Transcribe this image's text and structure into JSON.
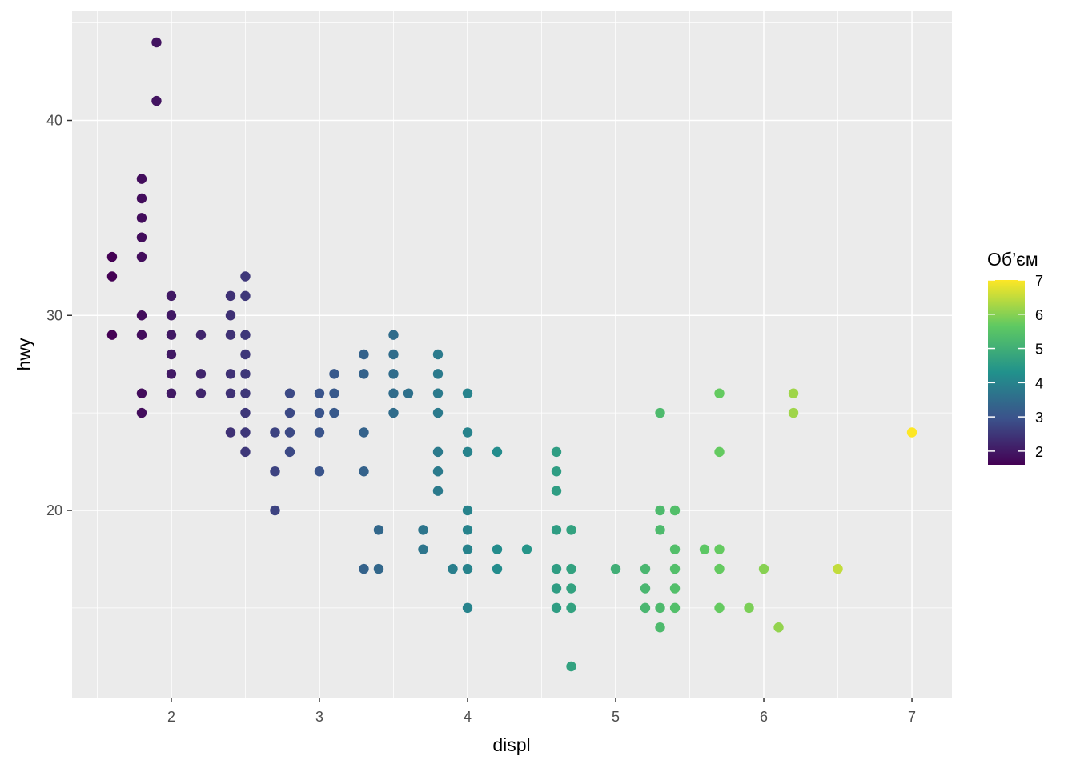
{
  "chart_data": {
    "type": "scatter",
    "xlabel": "displ",
    "ylabel": "hwy",
    "xlim": [
      1.33,
      7.27
    ],
    "ylim": [
      10.4,
      45.6
    ],
    "x_ticks": [
      2,
      3,
      4,
      5,
      6,
      7
    ],
    "y_ticks": [
      20,
      30,
      40
    ],
    "grid": true,
    "legend": {
      "title": "Об’єм",
      "position": "right",
      "type": "colorbar",
      "range": [
        1.6,
        7.0
      ],
      "ticks": [
        2,
        3,
        4,
        5,
        6,
        7
      ],
      "colors": [
        "#440154",
        "#3b528b",
        "#21918c",
        "#5ec962",
        "#fde725"
      ]
    },
    "panel_background": "#ebebeb",
    "grid_color": "#ffffff",
    "points": [
      {
        "x": 1.6,
        "y": 33
      },
      {
        "x": 1.6,
        "y": 32
      },
      {
        "x": 1.6,
        "y": 29
      },
      {
        "x": 1.8,
        "y": 37
      },
      {
        "x": 1.8,
        "y": 36
      },
      {
        "x": 1.8,
        "y": 35
      },
      {
        "x": 1.8,
        "y": 34
      },
      {
        "x": 1.8,
        "y": 33
      },
      {
        "x": 1.8,
        "y": 30
      },
      {
        "x": 1.8,
        "y": 29
      },
      {
        "x": 1.8,
        "y": 26
      },
      {
        "x": 1.8,
        "y": 25
      },
      {
        "x": 1.9,
        "y": 44
      },
      {
        "x": 1.9,
        "y": 41
      },
      {
        "x": 2.0,
        "y": 31
      },
      {
        "x": 2.0,
        "y": 30
      },
      {
        "x": 2.0,
        "y": 29
      },
      {
        "x": 2.0,
        "y": 28
      },
      {
        "x": 2.0,
        "y": 27
      },
      {
        "x": 2.0,
        "y": 26
      },
      {
        "x": 2.2,
        "y": 29
      },
      {
        "x": 2.2,
        "y": 27
      },
      {
        "x": 2.2,
        "y": 26
      },
      {
        "x": 2.4,
        "y": 31
      },
      {
        "x": 2.4,
        "y": 30
      },
      {
        "x": 2.4,
        "y": 29
      },
      {
        "x": 2.4,
        "y": 27
      },
      {
        "x": 2.4,
        "y": 26
      },
      {
        "x": 2.4,
        "y": 24
      },
      {
        "x": 2.5,
        "y": 32
      },
      {
        "x": 2.5,
        "y": 31
      },
      {
        "x": 2.5,
        "y": 29
      },
      {
        "x": 2.5,
        "y": 28
      },
      {
        "x": 2.5,
        "y": 27
      },
      {
        "x": 2.5,
        "y": 26
      },
      {
        "x": 2.5,
        "y": 25
      },
      {
        "x": 2.5,
        "y": 24
      },
      {
        "x": 2.5,
        "y": 23
      },
      {
        "x": 2.7,
        "y": 24
      },
      {
        "x": 2.7,
        "y": 22
      },
      {
        "x": 2.7,
        "y": 20
      },
      {
        "x": 2.8,
        "y": 26
      },
      {
        "x": 2.8,
        "y": 25
      },
      {
        "x": 2.8,
        "y": 24
      },
      {
        "x": 2.8,
        "y": 23
      },
      {
        "x": 3.0,
        "y": 26
      },
      {
        "x": 3.0,
        "y": 25
      },
      {
        "x": 3.0,
        "y": 24
      },
      {
        "x": 3.0,
        "y": 22
      },
      {
        "x": 3.1,
        "y": 27
      },
      {
        "x": 3.1,
        "y": 26
      },
      {
        "x": 3.1,
        "y": 25
      },
      {
        "x": 3.3,
        "y": 28
      },
      {
        "x": 3.3,
        "y": 27
      },
      {
        "x": 3.3,
        "y": 24
      },
      {
        "x": 3.3,
        "y": 22
      },
      {
        "x": 3.3,
        "y": 17
      },
      {
        "x": 3.4,
        "y": 19
      },
      {
        "x": 3.4,
        "y": 17
      },
      {
        "x": 3.5,
        "y": 29
      },
      {
        "x": 3.5,
        "y": 28
      },
      {
        "x": 3.5,
        "y": 27
      },
      {
        "x": 3.5,
        "y": 26
      },
      {
        "x": 3.5,
        "y": 25
      },
      {
        "x": 3.6,
        "y": 26
      },
      {
        "x": 3.7,
        "y": 19
      },
      {
        "x": 3.7,
        "y": 18
      },
      {
        "x": 3.8,
        "y": 28
      },
      {
        "x": 3.8,
        "y": 27
      },
      {
        "x": 3.8,
        "y": 26
      },
      {
        "x": 3.8,
        "y": 25
      },
      {
        "x": 3.8,
        "y": 23
      },
      {
        "x": 3.8,
        "y": 22
      },
      {
        "x": 3.8,
        "y": 21
      },
      {
        "x": 3.9,
        "y": 17
      },
      {
        "x": 4.0,
        "y": 26
      },
      {
        "x": 4.0,
        "y": 24
      },
      {
        "x": 4.0,
        "y": 23
      },
      {
        "x": 4.0,
        "y": 20
      },
      {
        "x": 4.0,
        "y": 19
      },
      {
        "x": 4.0,
        "y": 18
      },
      {
        "x": 4.0,
        "y": 17
      },
      {
        "x": 4.0,
        "y": 15
      },
      {
        "x": 4.2,
        "y": 23
      },
      {
        "x": 4.2,
        "y": 18
      },
      {
        "x": 4.2,
        "y": 17
      },
      {
        "x": 4.4,
        "y": 18
      },
      {
        "x": 4.6,
        "y": 23
      },
      {
        "x": 4.6,
        "y": 22
      },
      {
        "x": 4.6,
        "y": 21
      },
      {
        "x": 4.6,
        "y": 19
      },
      {
        "x": 4.6,
        "y": 17
      },
      {
        "x": 4.6,
        "y": 16
      },
      {
        "x": 4.6,
        "y": 15
      },
      {
        "x": 4.7,
        "y": 19
      },
      {
        "x": 4.7,
        "y": 17
      },
      {
        "x": 4.7,
        "y": 16
      },
      {
        "x": 4.7,
        "y": 15
      },
      {
        "x": 4.7,
        "y": 12
      },
      {
        "x": 5.0,
        "y": 17
      },
      {
        "x": 5.2,
        "y": 17
      },
      {
        "x": 5.2,
        "y": 16
      },
      {
        "x": 5.2,
        "y": 15
      },
      {
        "x": 5.3,
        "y": 25
      },
      {
        "x": 5.3,
        "y": 20
      },
      {
        "x": 5.3,
        "y": 19
      },
      {
        "x": 5.3,
        "y": 15
      },
      {
        "x": 5.3,
        "y": 14
      },
      {
        "x": 5.4,
        "y": 20
      },
      {
        "x": 5.4,
        "y": 18
      },
      {
        "x": 5.4,
        "y": 17
      },
      {
        "x": 5.4,
        "y": 16
      },
      {
        "x": 5.4,
        "y": 15
      },
      {
        "x": 5.6,
        "y": 18
      },
      {
        "x": 5.7,
        "y": 26
      },
      {
        "x": 5.7,
        "y": 23
      },
      {
        "x": 5.7,
        "y": 18
      },
      {
        "x": 5.7,
        "y": 17
      },
      {
        "x": 5.7,
        "y": 15
      },
      {
        "x": 5.9,
        "y": 15
      },
      {
        "x": 6.0,
        "y": 17
      },
      {
        "x": 6.1,
        "y": 14
      },
      {
        "x": 6.2,
        "y": 26
      },
      {
        "x": 6.2,
        "y": 25
      },
      {
        "x": 6.5,
        "y": 17
      },
      {
        "x": 7.0,
        "y": 24
      }
    ]
  }
}
